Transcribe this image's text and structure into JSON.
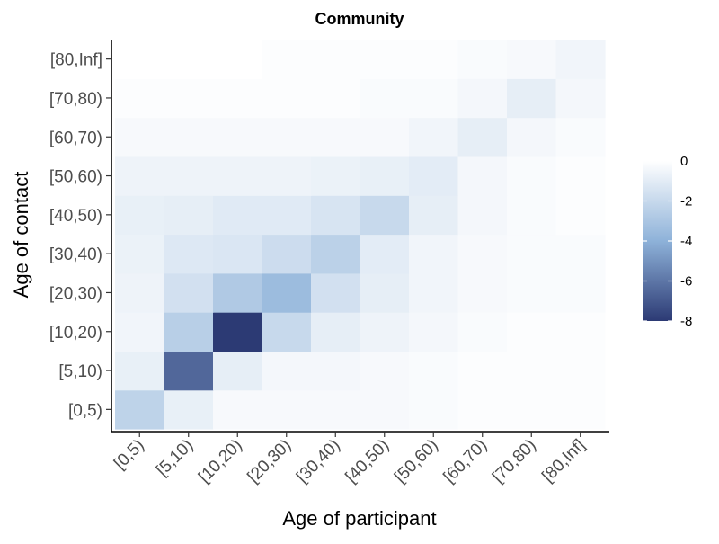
{
  "chart_data": {
    "type": "heatmap",
    "title": "Community",
    "xlabel": "Age of participant",
    "ylabel": "Age of contact",
    "x_categories": [
      "[0,5)",
      "[5,10)",
      "[10,20)",
      "[20,30)",
      "[30,40)",
      "[40,50)",
      "[50,60)",
      "[60,70)",
      "[70,80)",
      "[80,Inf]"
    ],
    "y_categories": [
      "[0,5)",
      "[5,10)",
      "[10,20)",
      "[20,30)",
      "[30,40)",
      "[40,50)",
      "[50,60)",
      "[60,70)",
      "[70,80)",
      "[80,Inf]"
    ],
    "values_by_contact": [
      [
        -2.3,
        -0.8,
        -0.3,
        -0.3,
        -0.3,
        -0.3,
        -0.2,
        -0.1,
        -0.1,
        -0.1
      ],
      [
        -0.8,
        -6.5,
        -0.9,
        -0.4,
        -0.4,
        -0.3,
        -0.2,
        -0.1,
        -0.1,
        -0.1
      ],
      [
        -0.5,
        -2.5,
        -8.0,
        -2.0,
        -0.9,
        -0.6,
        -0.4,
        -0.2,
        -0.1,
        -0.1
      ],
      [
        -0.6,
        -1.6,
        -2.8,
        -3.5,
        -1.6,
        -0.9,
        -0.5,
        -0.3,
        -0.2,
        -0.2
      ],
      [
        -0.7,
        -1.2,
        -1.3,
        -1.8,
        -2.4,
        -1.0,
        -0.5,
        -0.3,
        -0.2,
        -0.2
      ],
      [
        -0.8,
        -0.9,
        -1.1,
        -1.1,
        -1.4,
        -2.0,
        -0.9,
        -0.4,
        -0.2,
        -0.1
      ],
      [
        -0.6,
        -0.6,
        -0.6,
        -0.6,
        -0.7,
        -0.8,
        -1.0,
        -0.4,
        -0.2,
        -0.1
      ],
      [
        -0.3,
        -0.3,
        -0.3,
        -0.3,
        -0.3,
        -0.3,
        -0.5,
        -0.9,
        -0.4,
        -0.2
      ],
      [
        -0.1,
        -0.1,
        -0.1,
        -0.1,
        -0.1,
        -0.2,
        -0.2,
        -0.4,
        -0.9,
        -0.4
      ],
      [
        0.0,
        0.0,
        0.0,
        -0.1,
        -0.1,
        -0.1,
        -0.1,
        -0.2,
        -0.3,
        -0.5
      ]
    ],
    "color_scale": {
      "range": [
        -8,
        0
      ],
      "low_color": "#2c3a74",
      "mid_color": "#8eb2d9",
      "high_color": "#ffffff"
    },
    "legend": {
      "ticks": [
        0,
        -2,
        -4,
        -6,
        -8
      ],
      "labels": [
        "0",
        "-2",
        "-4",
        "-6",
        "-8"
      ],
      "position": "right"
    },
    "grid": false
  }
}
